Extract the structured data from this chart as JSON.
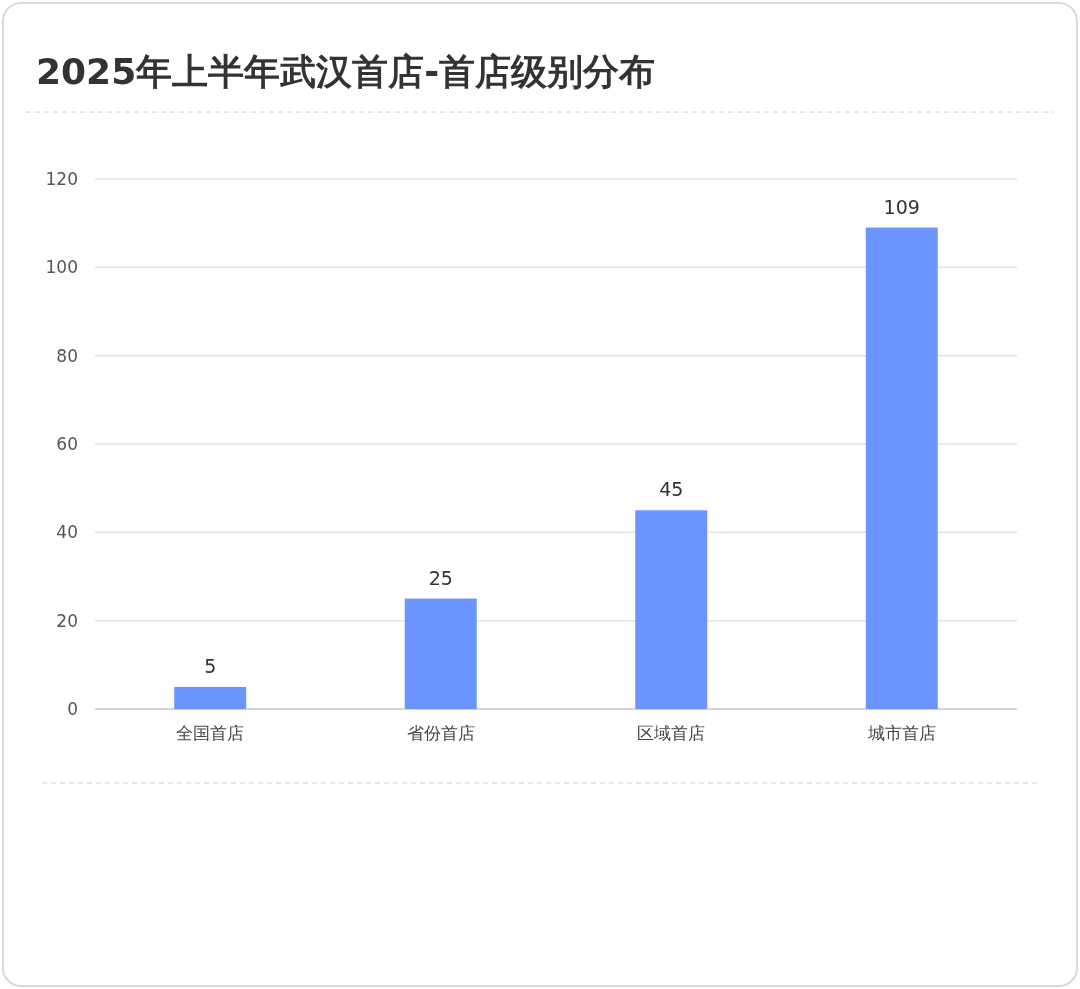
{
  "chart_data": {
    "type": "bar",
    "title": "2025年上半年武汉首店-首店级别分布",
    "categories": [
      "全国首店",
      "省份首店",
      "区域首店",
      "城市首店"
    ],
    "values": [
      5,
      25,
      45,
      109
    ],
    "color": "#6b94ff",
    "ylim": [
      0,
      120
    ],
    "yticks": [
      0,
      20,
      40,
      60,
      80,
      100,
      120
    ],
    "grid": "y",
    "data_labels": true
  }
}
